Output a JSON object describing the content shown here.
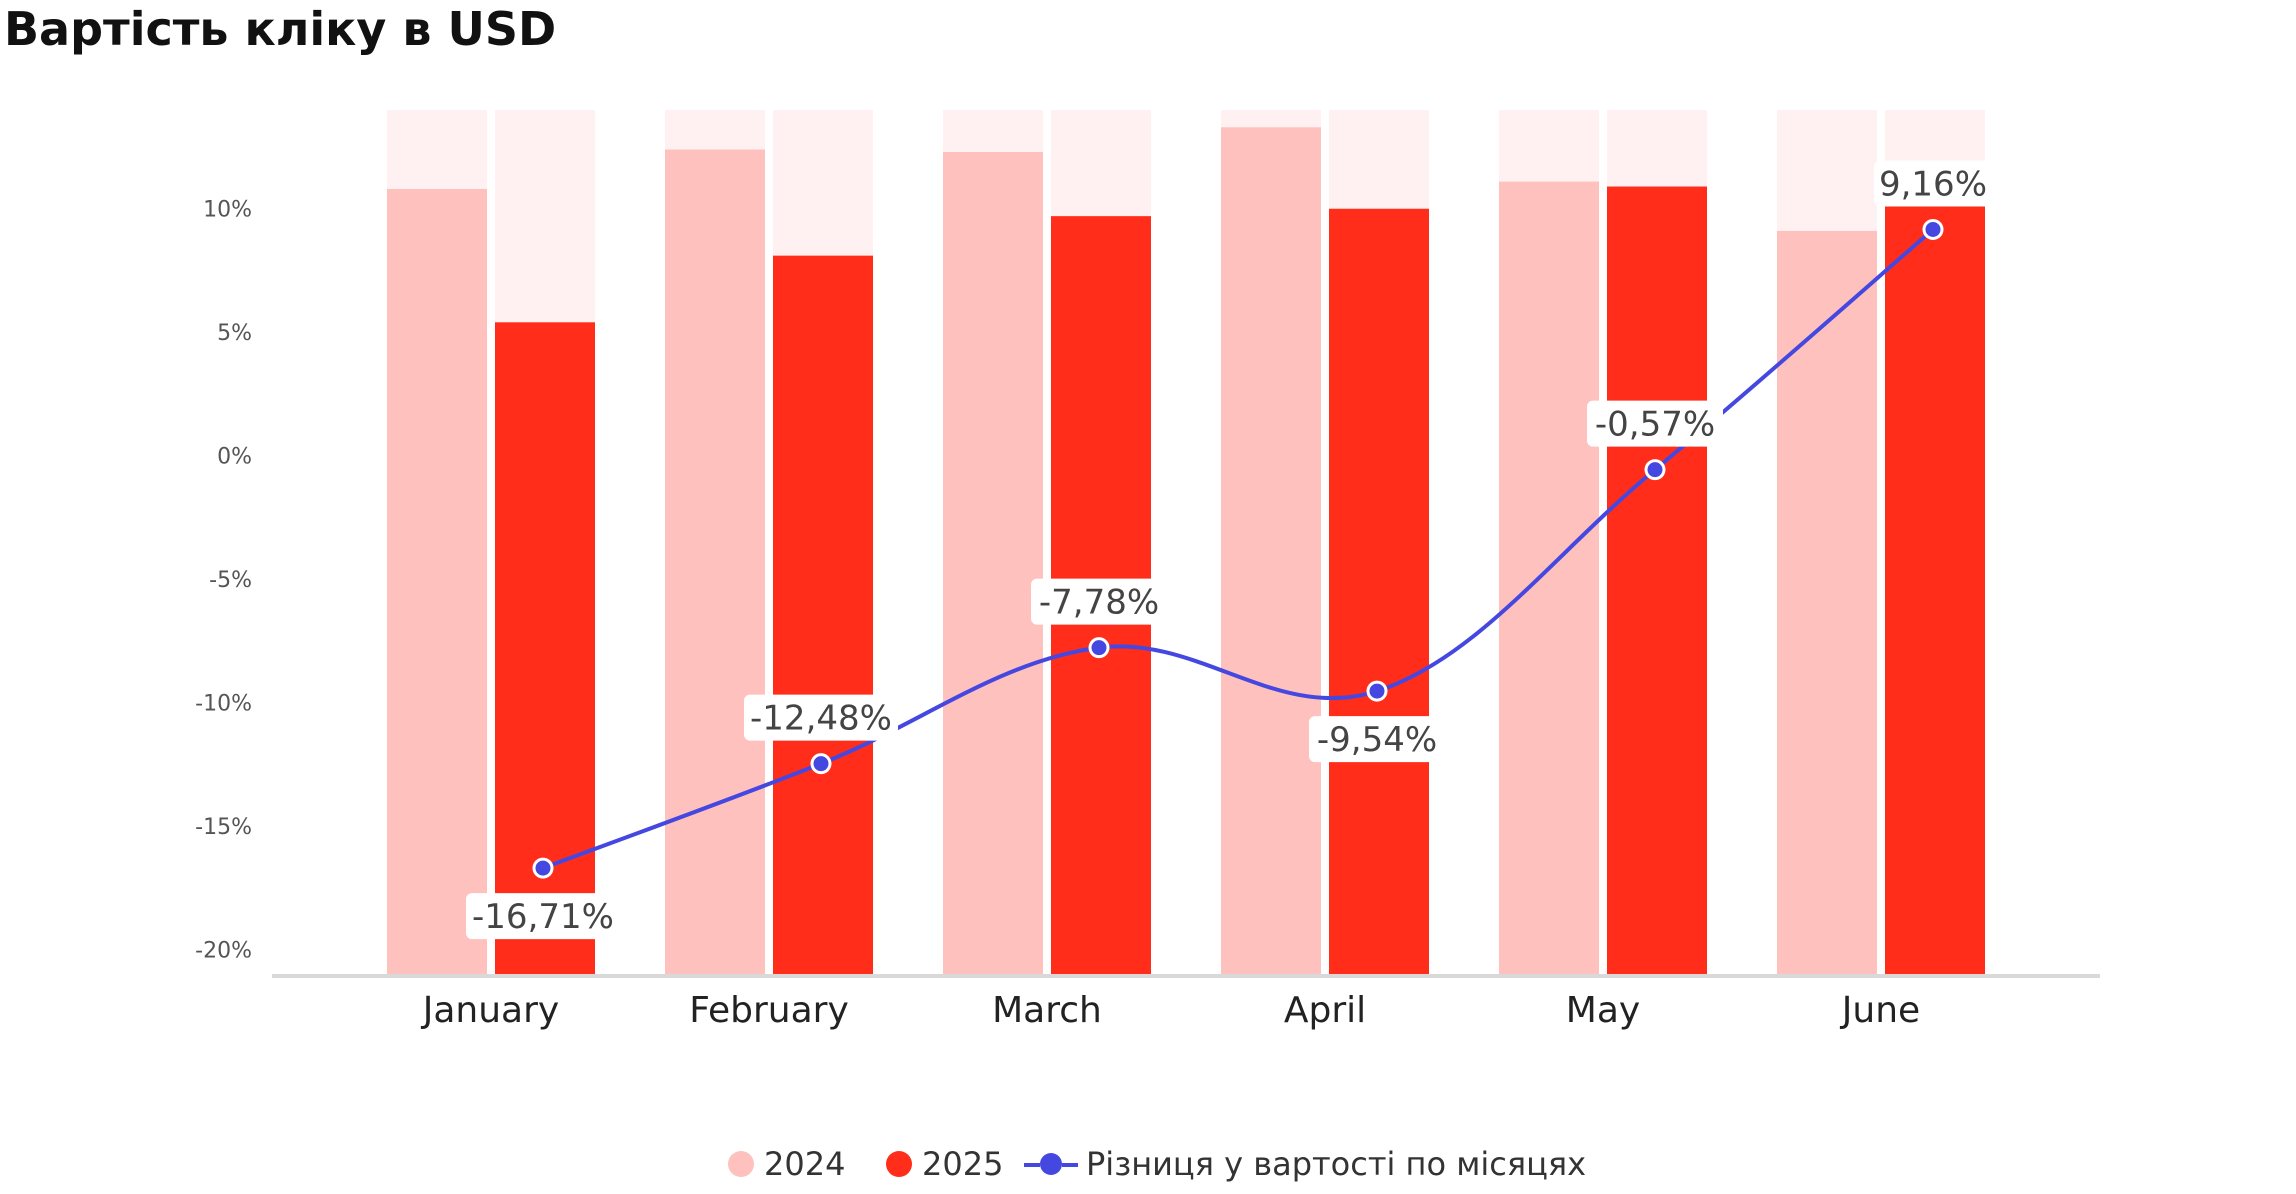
{
  "title": "Вартість кліку в USD",
  "colors": {
    "bar_2024": "#ffc1bd",
    "bar_2025": "#ff2d1a",
    "bar_background": "#fff1f1",
    "line": "#4548e0",
    "axis": "#d9d9d9",
    "tick_text": "#555555",
    "label_text": "#444444"
  },
  "chart_data": {
    "type": "bar",
    "categories": [
      "January",
      "February",
      "March",
      "April",
      "May",
      "June"
    ],
    "series": [
      {
        "name": "2024",
        "kind": "bar",
        "values": [
          10.8,
          12.4,
          12.3,
          13.3,
          11.1,
          9.1
        ]
      },
      {
        "name": "2025",
        "kind": "bar",
        "values": [
          5.4,
          8.1,
          9.7,
          10.0,
          10.9,
          11.9
        ]
      },
      {
        "name": "Різниця у вартості по місяцях",
        "kind": "line",
        "values": [
          -16.71,
          -12.48,
          -7.78,
          -9.54,
          -0.57,
          9.16
        ]
      }
    ],
    "data_labels": [
      "-16,71%",
      "-12,48%",
      "-7,78%",
      "-9,54%",
      "-0,57%",
      "9,16%"
    ],
    "yaxis": {
      "ticks": [
        "10%",
        "5%",
        "0%",
        "-5%",
        "-10%",
        "-15%",
        "-20%"
      ],
      "tick_values": [
        10,
        5,
        0,
        -5,
        -10,
        -15,
        -20
      ],
      "ylim": [
        -21,
        14
      ]
    },
    "grid": false,
    "legend_position": "bottom-center",
    "title": "Вартість кліку в USD"
  },
  "legend": {
    "item_2024": "2024",
    "item_2025": "2025",
    "item_line": "Різниця у вартості по місяцях"
  }
}
